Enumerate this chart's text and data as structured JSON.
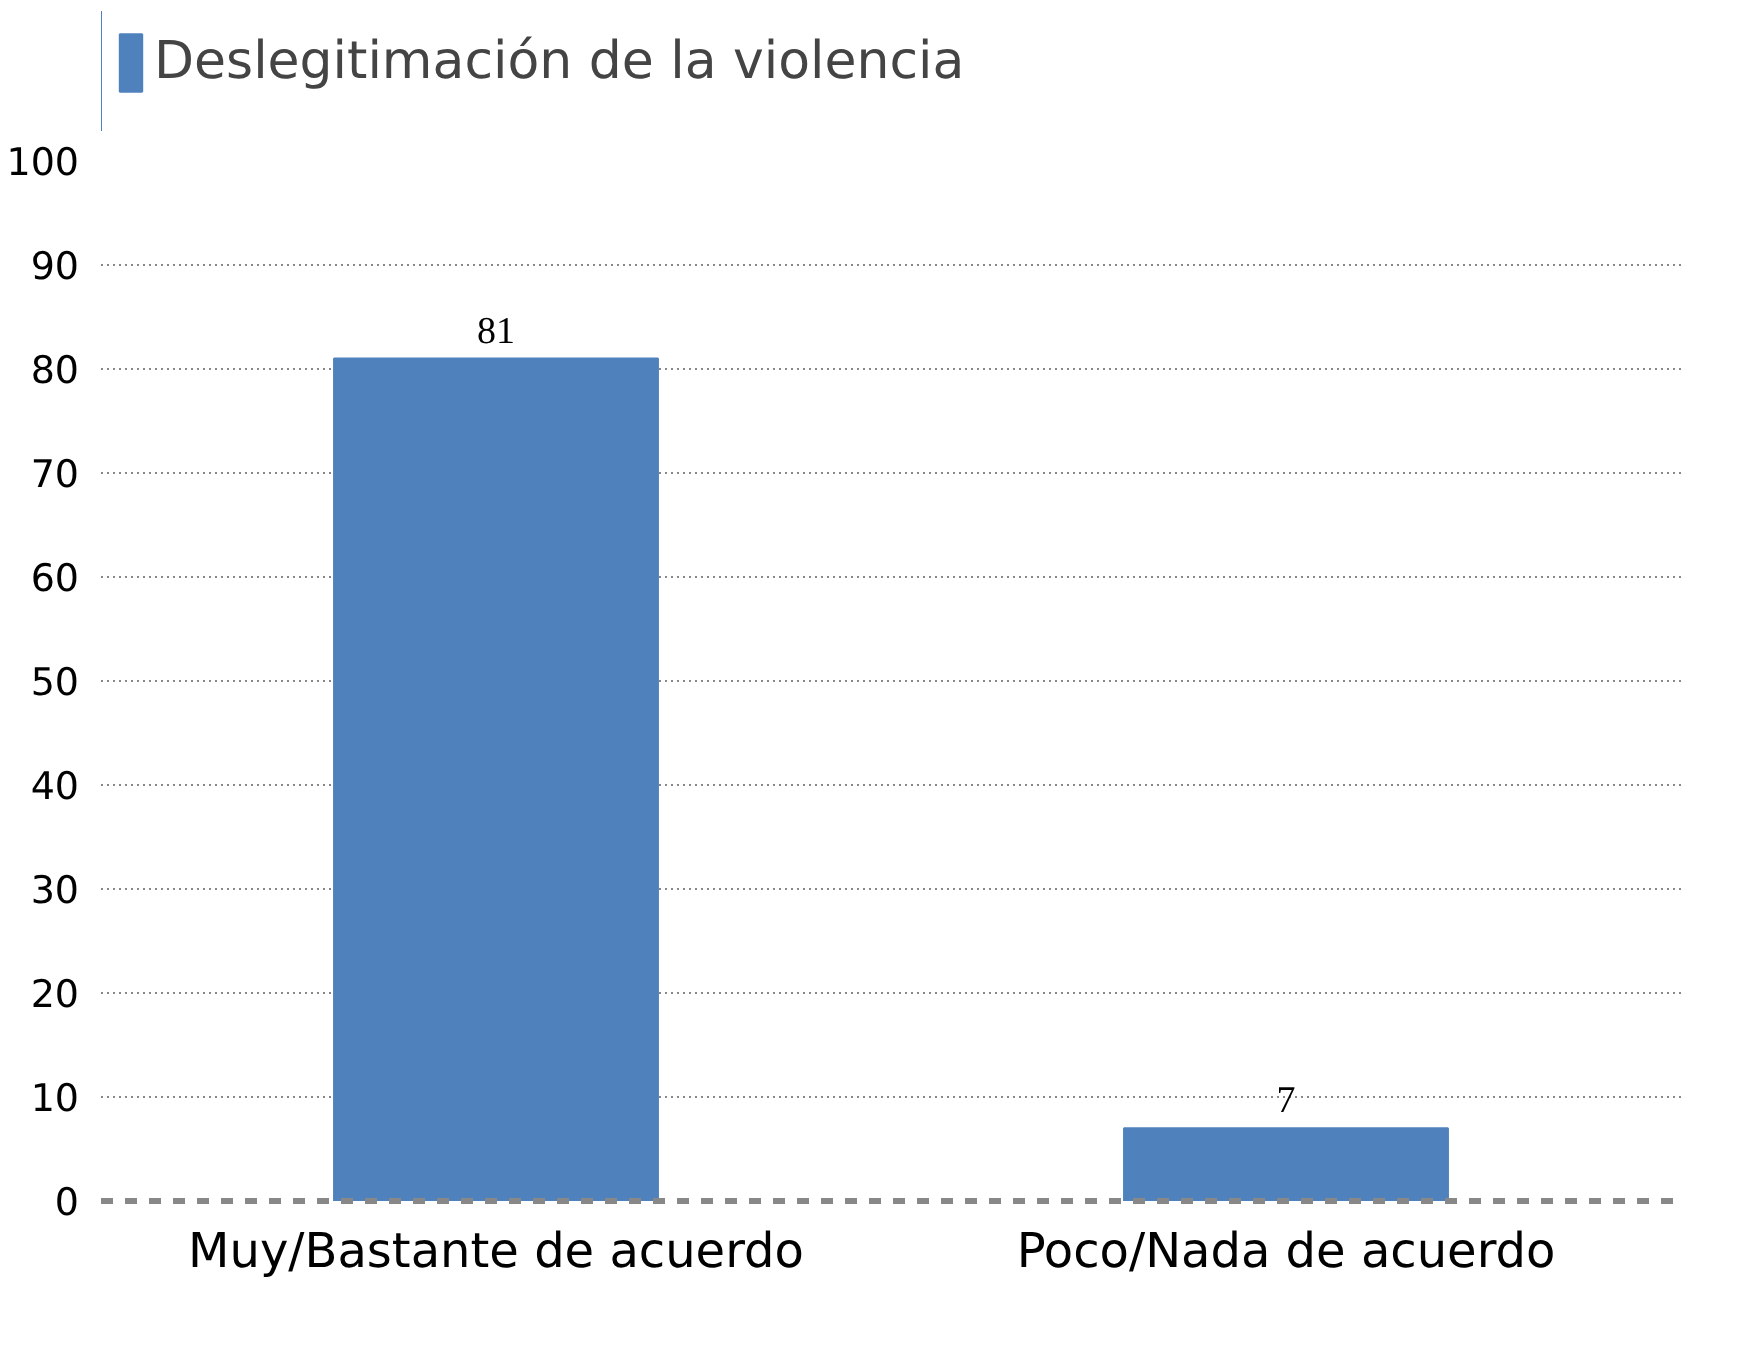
{
  "chart_data": {
    "type": "bar",
    "categories": [
      "Muy/Bastante de acuerdo",
      "Poco/Nada de acuerdo"
    ],
    "series": [
      {
        "name": "Deslegitimación de la violencia",
        "color": "#4f81bd",
        "values": [
          81,
          7
        ]
      }
    ],
    "ylim": [
      0,
      100
    ],
    "yticks": [
      0,
      10,
      20,
      30,
      40,
      50,
      60,
      70,
      80,
      90,
      100
    ],
    "grid": "y",
    "legend": "top left",
    "data_labels": true
  }
}
